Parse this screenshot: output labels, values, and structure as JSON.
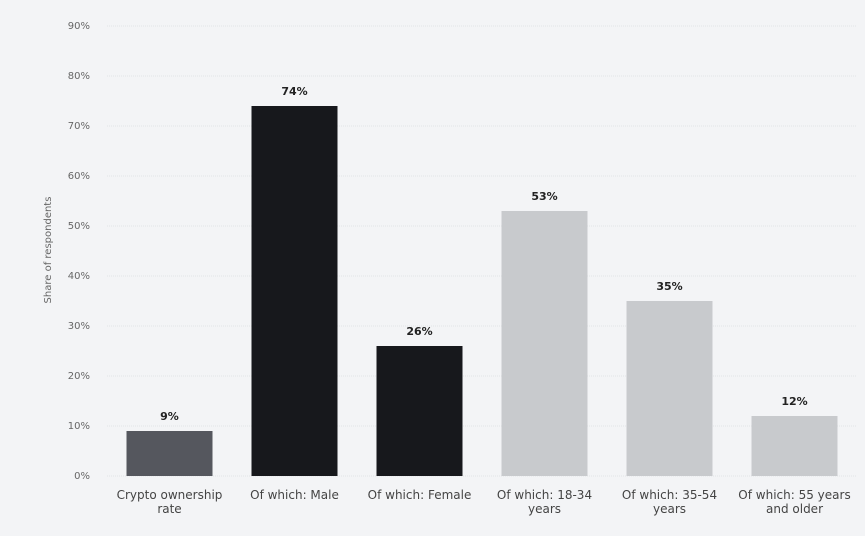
{
  "chart_data": {
    "type": "bar",
    "y_label": "Share of respondents",
    "categories": [
      "Crypto ownership rate",
      "Of which: Male",
      "Of which: Female",
      "Of which: 18-34 years",
      "Of which: 35-54 years",
      "Of which: 55 years and older"
    ],
    "values": [
      9,
      74,
      26,
      53,
      35,
      12
    ],
    "value_labels": [
      "9%",
      "74%",
      "26%",
      "53%",
      "35%",
      "12%"
    ],
    "colors": [
      "#55575e",
      "#17181c",
      "#17181c",
      "#c8cacd",
      "#c8cacd",
      "#c8cacd"
    ],
    "ylim": [
      0,
      90
    ],
    "yticks": [
      {
        "value": 0,
        "label": "0%"
      },
      {
        "value": 10,
        "label": "10%"
      },
      {
        "value": 20,
        "label": "20%"
      },
      {
        "value": 30,
        "label": "30%"
      },
      {
        "value": 40,
        "label": "40%"
      },
      {
        "value": 50,
        "label": "50%"
      },
      {
        "value": 60,
        "label": "60%"
      },
      {
        "value": 70,
        "label": "70%"
      },
      {
        "value": 80,
        "label": "80%"
      },
      {
        "value": 90,
        "label": "90%"
      }
    ],
    "grid": true
  }
}
